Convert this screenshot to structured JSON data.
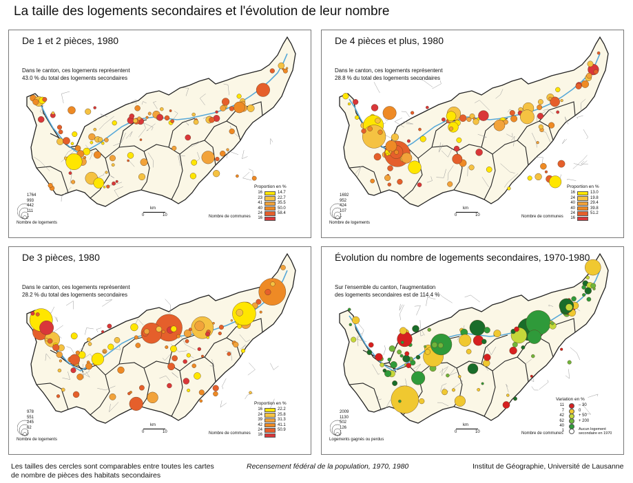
{
  "title": "La taille des logements secondaires et l'évolution de leur nombre",
  "colors": {
    "lake": "#56a8d8",
    "land": "#fbf7e6",
    "orange": [
      "#ffe600",
      "#f5c242",
      "#f2a33a",
      "#ee8a25",
      "#e55f2b",
      "#d9373a"
    ],
    "green": [
      "#d62020",
      "#f0c830",
      "#c4d83a",
      "#6fb53c",
      "#2f9a3a",
      "#196d2a"
    ]
  },
  "panels": [
    {
      "id": "p1",
      "title": "De 1 et 2 pièces, 1980",
      "note": [
        "Dans le canton, ces logements représentent",
        "43.0 % du total des logements secondaires"
      ],
      "legend_title": "Proportion en %",
      "legend": [
        {
          "count": "16",
          "value": "14.7"
        },
        {
          "count": "23",
          "value": "22.7"
        },
        {
          "count": "41",
          "value": "35.5"
        },
        {
          "count": "40",
          "value": "50.0"
        },
        {
          "count": "24",
          "value": "58.4"
        },
        {
          "count": "16",
          "value": ""
        }
      ],
      "sizes": [
        "1764",
        "993",
        "442",
        "111",
        "1"
      ],
      "size_caption": "Nombre de logements",
      "scale": {
        "unit": "km",
        "s0": "0",
        "s1": "10"
      },
      "communes": "Nombre de communes",
      "palette": "orange"
    },
    {
      "id": "p2",
      "title": "De 4 pièces et plus, 1980",
      "note": [
        "Dans le canton, ces logements représentent",
        "28.8 % du total des logements secondaires"
      ],
      "legend_title": "Proportion en %",
      "legend": [
        {
          "count": "16",
          "value": "13.0"
        },
        {
          "count": "24",
          "value": "19.8"
        },
        {
          "count": "40",
          "value": "29.4"
        },
        {
          "count": "40",
          "value": "39.8"
        },
        {
          "count": "24",
          "value": "51.2"
        },
        {
          "count": "16",
          "value": ""
        }
      ],
      "sizes": [
        "1692",
        "952",
        "424",
        "107",
        "1"
      ],
      "size_caption": "Nombre de logements",
      "scale": {
        "unit": "km",
        "s0": "0",
        "s1": "10"
      },
      "communes": "Nombre de communes",
      "palette": "orange"
    },
    {
      "id": "p3",
      "title": "De 3 pièces, 1980",
      "note": [
        "Dans le canton, ces logements représentent",
        "28.2 % du total des logements secondaires"
      ],
      "legend_title": "Proportion en %",
      "legend": [
        {
          "count": "16",
          "value": "22.2"
        },
        {
          "count": "24",
          "value": "25.8"
        },
        {
          "count": "39",
          "value": "31.3"
        },
        {
          "count": "42",
          "value": "41.1"
        },
        {
          "count": "24",
          "value": "50.9"
        },
        {
          "count": "16",
          "value": ""
        }
      ],
      "sizes": [
        "978",
        "551",
        "245",
        "62",
        "1"
      ],
      "size_caption": "Nombre de logements",
      "scale": {
        "unit": "km",
        "s0": "0",
        "s1": "10"
      },
      "communes": "Nombre de communes",
      "palette": "orange"
    },
    {
      "id": "p4",
      "title": "Évolution du nombre de logements secondaires, 1970-1980",
      "note": [
        "Sur l'ensemble du canton, l'augmentation",
        "des logements secondaires est de 114.4 %"
      ],
      "legend_title": "Variation en %",
      "legend": [
        {
          "count": "11",
          "value": "– 30"
        },
        {
          "count": "7",
          "value": "0"
        },
        {
          "count": "42",
          "value": "+ 50"
        },
        {
          "count": "62",
          "value": "+ 200"
        },
        {
          "count": "40",
          "value": ""
        },
        {
          "count": "1",
          "value": "Aucun logement secondaire en 1970"
        }
      ],
      "sizes": [
        "2009",
        "1130",
        "502",
        "126",
        "1"
      ],
      "size_caption": "Logements gagnés ou perdus",
      "scale": {
        "unit": "km",
        "s0": "0",
        "s1": "10"
      },
      "communes": "Nombre de communes",
      "palette": "green"
    }
  ],
  "footer": {
    "left": [
      "Les tailles des cercles sont comparables entre toutes les cartes",
      "de nombre de pièces des habitats secondaires"
    ],
    "middle": "Recensement fédéral de la population, 1970, 1980",
    "right": "Institut de Géographie, Université de Lausanne"
  }
}
